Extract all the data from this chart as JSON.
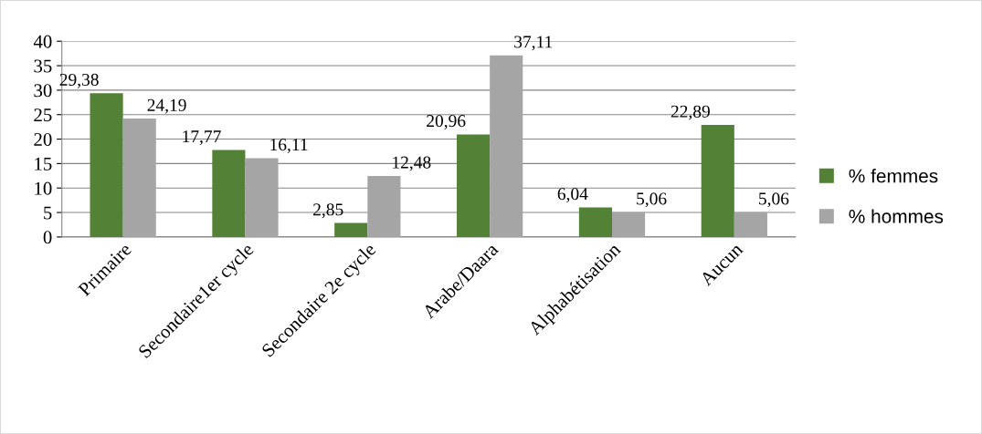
{
  "chart_data": {
    "type": "bar",
    "categories": [
      "Primaire",
      "Secondaire1er cycle",
      "Secondaire 2e cycle",
      "Arabe/Daara",
      "Alphabétisation",
      "Aucun"
    ],
    "series": [
      {
        "name": "% femmes",
        "color": "#538135",
        "values": [
          29.38,
          17.77,
          2.85,
          20.96,
          6.04,
          22.89
        ],
        "value_labels": [
          "29,38",
          "17,77",
          "2,85",
          "20,96",
          "6,04",
          "22,89"
        ]
      },
      {
        "name": "% hommes",
        "color": "#a5a5a5",
        "values": [
          24.19,
          16.11,
          12.48,
          37.11,
          5.06,
          5.06
        ],
        "value_labels": [
          "24,19",
          "16,11",
          "12,48",
          "37,11",
          "5,06",
          "5,06"
        ]
      }
    ],
    "ylim": [
      0,
      40
    ],
    "yticks": [
      0,
      5,
      10,
      15,
      20,
      25,
      30,
      35,
      40
    ],
    "grid": "y",
    "legend": "right"
  }
}
